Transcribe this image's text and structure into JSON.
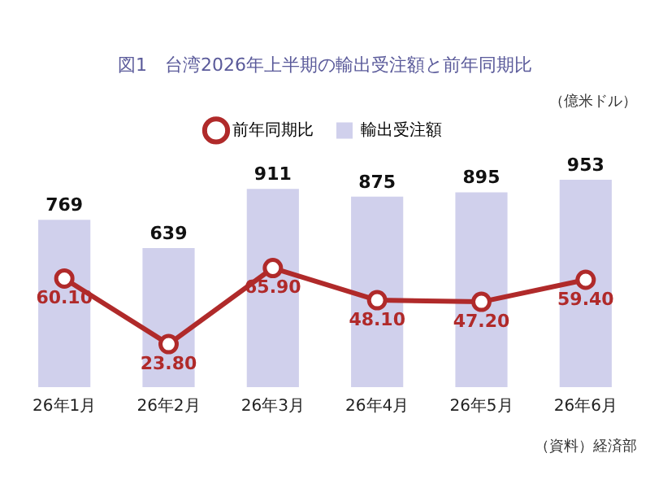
{
  "chart_data": {
    "type": "bar",
    "title": "図1　台湾2026年上半期の輸出受注額と前年同期比",
    "categories": [
      "26年1月",
      "26年2月",
      "26年3月",
      "26年4月",
      "26年5月",
      "26年6月"
    ],
    "series": [
      {
        "name": "前年同期比",
        "type": "line",
        "axis": "y2",
        "color": "#b02a2a",
        "values": [
          60.1,
          23.8,
          65.9,
          48.1,
          47.2,
          59.4
        ],
        "value_labels": [
          "60.10",
          "23.80",
          "65.90",
          "48.10",
          "47.20",
          "59.40"
        ]
      },
      {
        "name": "輸出受注額",
        "color": "#d0d0ec",
        "values": [
          769,
          639,
          911,
          875,
          895,
          953
        ]
      }
    ],
    "data_labels": true,
    "legend": "top",
    "marker": "circle",
    "grid": false,
    "tick_labels": "x",
    "annotations": [
      "（億米ドル）",
      "（資料）経済部"
    ]
  }
}
